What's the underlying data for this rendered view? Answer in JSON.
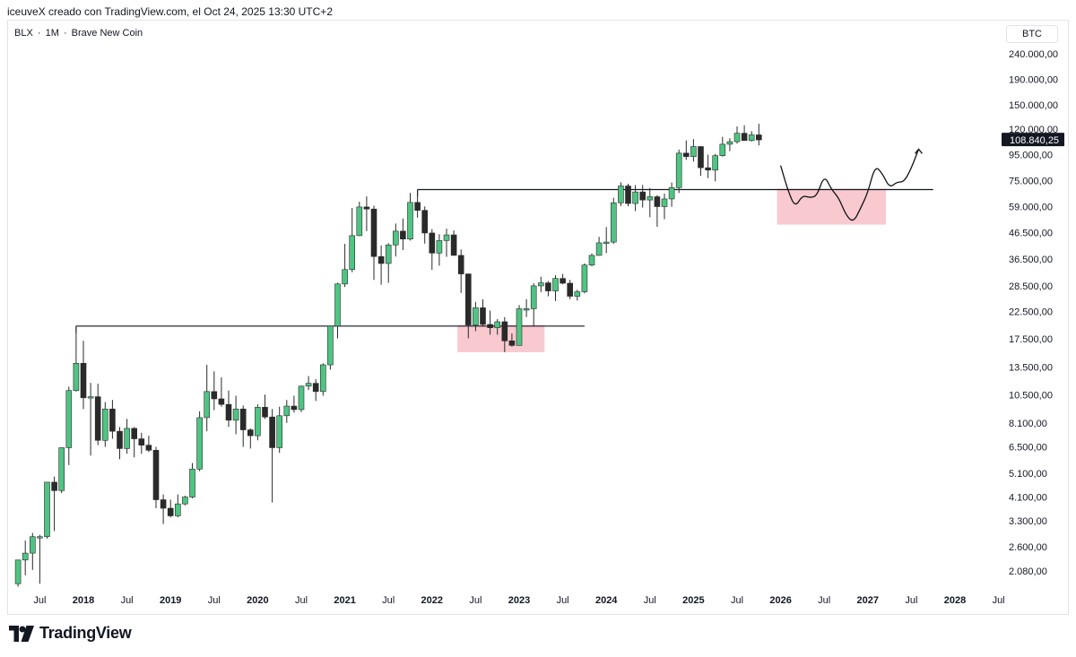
{
  "header": {
    "caption": "iceuveX creado con TradingView.com, el Oct 24, 2025 13:30 UTC+2"
  },
  "symbol": {
    "ticker": "BLX",
    "interval": "1M",
    "source": "Brave New Coin",
    "separator": "·"
  },
  "currency": "BTC",
  "brand": {
    "name": "TradingView"
  },
  "colors": {
    "up": "#4fc483",
    "down": "#2a2a2a",
    "zone": "#f8c9cf",
    "line": "#131722",
    "axis_text": "#131722",
    "last_price_bg": "#131722"
  },
  "chart_data": {
    "type": "candlestick",
    "scale": "log",
    "y_ticks": [
      {
        "value": 240000,
        "label": "240.000,00"
      },
      {
        "value": 190000,
        "label": "190.000,00"
      },
      {
        "value": 150000,
        "label": "150.000,00"
      },
      {
        "value": 120000,
        "label": "120.000,00"
      },
      {
        "value": 95000,
        "label": "95.000,00"
      },
      {
        "value": 75000,
        "label": "75.000,00"
      },
      {
        "value": 59000,
        "label": "59.000,00"
      },
      {
        "value": 46500,
        "label": "46.500,00"
      },
      {
        "value": 36500,
        "label": "36.500,00"
      },
      {
        "value": 28500,
        "label": "28.500,00"
      },
      {
        "value": 22500,
        "label": "22.500,00"
      },
      {
        "value": 17500,
        "label": "17.500,00"
      },
      {
        "value": 13500,
        "label": "13.500,00"
      },
      {
        "value": 10500,
        "label": "10.500,00"
      },
      {
        "value": 8100,
        "label": "8.100,00"
      },
      {
        "value": 6500,
        "label": "6.500,00"
      },
      {
        "value": 5100,
        "label": "5.100,00"
      },
      {
        "value": 4100,
        "label": "4.100,00"
      },
      {
        "value": 3300,
        "label": "3.300,00"
      },
      {
        "value": 2600,
        "label": "2.600,00"
      },
      {
        "value": 2080,
        "label": "2.080,00"
      }
    ],
    "x_ticks": [
      {
        "date": "2017-07",
        "label": "Jul",
        "bold": false
      },
      {
        "date": "2018-01",
        "label": "2018",
        "bold": true
      },
      {
        "date": "2018-07",
        "label": "Jul",
        "bold": false
      },
      {
        "date": "2019-01",
        "label": "2019",
        "bold": true
      },
      {
        "date": "2019-07",
        "label": "Jul",
        "bold": false
      },
      {
        "date": "2020-01",
        "label": "2020",
        "bold": true
      },
      {
        "date": "2020-07",
        "label": "Jul",
        "bold": false
      },
      {
        "date": "2021-01",
        "label": "2021",
        "bold": true
      },
      {
        "date": "2021-07",
        "label": "Jul",
        "bold": false
      },
      {
        "date": "2022-01",
        "label": "2022",
        "bold": true
      },
      {
        "date": "2022-07",
        "label": "Jul",
        "bold": false
      },
      {
        "date": "2023-01",
        "label": "2023",
        "bold": true
      },
      {
        "date": "2023-07",
        "label": "Jul",
        "bold": false
      },
      {
        "date": "2024-01",
        "label": "2024",
        "bold": true
      },
      {
        "date": "2024-07",
        "label": "Jul",
        "bold": false
      },
      {
        "date": "2025-01",
        "label": "2025",
        "bold": true
      },
      {
        "date": "2025-07",
        "label": "Jul",
        "bold": false
      },
      {
        "date": "2026-01",
        "label": "2026",
        "bold": true
      },
      {
        "date": "2026-07",
        "label": "Jul",
        "bold": false
      },
      {
        "date": "2027-01",
        "label": "2027",
        "bold": true
      },
      {
        "date": "2027-07",
        "label": "Jul",
        "bold": false
      },
      {
        "date": "2028-01",
        "label": "2028",
        "bold": true
      },
      {
        "date": "2028-07",
        "label": "Jul",
        "bold": false
      }
    ],
    "last_price": {
      "value": 108840.25,
      "label": "108.840,25"
    },
    "candles": [
      {
        "date": "2017-04",
        "o": 1850,
        "h": 2300,
        "l": 1800,
        "c": 2300
      },
      {
        "date": "2017-05",
        "o": 2300,
        "h": 2750,
        "l": 2000,
        "c": 2450
      },
      {
        "date": "2017-06",
        "o": 2450,
        "h": 2950,
        "l": 2100,
        "c": 2850
      },
      {
        "date": "2017-07",
        "o": 2850,
        "h": 2900,
        "l": 1850,
        "c": 2850
      },
      {
        "date": "2017-08",
        "o": 2850,
        "h": 4700,
        "l": 2800,
        "c": 4700
      },
      {
        "date": "2017-09",
        "o": 4700,
        "h": 4950,
        "l": 3000,
        "c": 4350
      },
      {
        "date": "2017-10",
        "o": 4350,
        "h": 6450,
        "l": 4250,
        "c": 6450
      },
      {
        "date": "2017-11",
        "o": 6450,
        "h": 11300,
        "l": 5500,
        "c": 10900
      },
      {
        "date": "2017-12",
        "o": 10900,
        "h": 19700,
        "l": 10800,
        "c": 14000
      },
      {
        "date": "2018-01",
        "o": 14000,
        "h": 17200,
        "l": 9200,
        "c": 10200
      },
      {
        "date": "2018-02",
        "o": 10200,
        "h": 11700,
        "l": 6000,
        "c": 10300
      },
      {
        "date": "2018-03",
        "o": 10300,
        "h": 11600,
        "l": 6600,
        "c": 6900
      },
      {
        "date": "2018-04",
        "o": 6900,
        "h": 9800,
        "l": 6500,
        "c": 9200
      },
      {
        "date": "2018-05",
        "o": 9200,
        "h": 10000,
        "l": 7000,
        "c": 7500
      },
      {
        "date": "2018-06",
        "o": 7500,
        "h": 7800,
        "l": 5800,
        "c": 6400
      },
      {
        "date": "2018-07",
        "o": 6400,
        "h": 8400,
        "l": 6100,
        "c": 7700
      },
      {
        "date": "2018-08",
        "o": 7700,
        "h": 7800,
        "l": 5900,
        "c": 7000
      },
      {
        "date": "2018-09",
        "o": 7000,
        "h": 7400,
        "l": 6100,
        "c": 6600
      },
      {
        "date": "2018-10",
        "o": 6600,
        "h": 7200,
        "l": 6200,
        "c": 6300
      },
      {
        "date": "2018-11",
        "o": 6300,
        "h": 6500,
        "l": 3700,
        "c": 4000
      },
      {
        "date": "2018-12",
        "o": 4000,
        "h": 4200,
        "l": 3200,
        "c": 3700
      },
      {
        "date": "2019-01",
        "o": 3700,
        "h": 4000,
        "l": 3400,
        "c": 3450
      },
      {
        "date": "2019-02",
        "o": 3450,
        "h": 4200,
        "l": 3400,
        "c": 3850
      },
      {
        "date": "2019-03",
        "o": 3850,
        "h": 4150,
        "l": 3800,
        "c": 4100
      },
      {
        "date": "2019-04",
        "o": 4100,
        "h": 5600,
        "l": 4050,
        "c": 5300
      },
      {
        "date": "2019-05",
        "o": 5300,
        "h": 9000,
        "l": 5200,
        "c": 8500
      },
      {
        "date": "2019-06",
        "o": 8500,
        "h": 13800,
        "l": 7500,
        "c": 10800
      },
      {
        "date": "2019-07",
        "o": 10800,
        "h": 13000,
        "l": 9100,
        "c": 10100
      },
      {
        "date": "2019-08",
        "o": 10100,
        "h": 12300,
        "l": 9400,
        "c": 9600
      },
      {
        "date": "2019-09",
        "o": 9600,
        "h": 10900,
        "l": 7800,
        "c": 8300
      },
      {
        "date": "2019-10",
        "o": 8300,
        "h": 10400,
        "l": 7300,
        "c": 9200
      },
      {
        "date": "2019-11",
        "o": 9200,
        "h": 9500,
        "l": 6500,
        "c": 7600
      },
      {
        "date": "2019-12",
        "o": 7600,
        "h": 7700,
        "l": 6400,
        "c": 7200
      },
      {
        "date": "2020-01",
        "o": 7200,
        "h": 9600,
        "l": 6900,
        "c": 9350
      },
      {
        "date": "2020-02",
        "o": 9350,
        "h": 10500,
        "l": 8400,
        "c": 8550
      },
      {
        "date": "2020-03",
        "o": 8550,
        "h": 9200,
        "l": 3900,
        "c": 6450
      },
      {
        "date": "2020-04",
        "o": 6450,
        "h": 9400,
        "l": 6150,
        "c": 8650
      },
      {
        "date": "2020-05",
        "o": 8650,
        "h": 10000,
        "l": 8100,
        "c": 9450
      },
      {
        "date": "2020-06",
        "o": 9450,
        "h": 10400,
        "l": 8900,
        "c": 9150
      },
      {
        "date": "2020-07",
        "o": 9150,
        "h": 11400,
        "l": 8950,
        "c": 11350
      },
      {
        "date": "2020-08",
        "o": 11350,
        "h": 12450,
        "l": 10950,
        "c": 11650
      },
      {
        "date": "2020-09",
        "o": 11650,
        "h": 12100,
        "l": 9900,
        "c": 10800
      },
      {
        "date": "2020-10",
        "o": 10800,
        "h": 14000,
        "l": 10400,
        "c": 13800
      },
      {
        "date": "2020-11",
        "o": 13800,
        "h": 19800,
        "l": 13200,
        "c": 19700
      },
      {
        "date": "2020-12",
        "o": 19700,
        "h": 29300,
        "l": 17600,
        "c": 29000
      },
      {
        "date": "2021-01",
        "o": 29000,
        "h": 41900,
        "l": 28200,
        "c": 33100
      },
      {
        "date": "2021-02",
        "o": 33100,
        "h": 58300,
        "l": 32300,
        "c": 45200
      },
      {
        "date": "2021-03",
        "o": 45200,
        "h": 61700,
        "l": 45000,
        "c": 58800
      },
      {
        "date": "2021-04",
        "o": 58800,
        "h": 64800,
        "l": 47100,
        "c": 57700
      },
      {
        "date": "2021-05",
        "o": 57700,
        "h": 59500,
        "l": 30100,
        "c": 37300
      },
      {
        "date": "2021-06",
        "o": 37300,
        "h": 41300,
        "l": 28800,
        "c": 35000
      },
      {
        "date": "2021-07",
        "o": 35000,
        "h": 42200,
        "l": 29300,
        "c": 41500
      },
      {
        "date": "2021-08",
        "o": 41500,
        "h": 50500,
        "l": 37300,
        "c": 47100
      },
      {
        "date": "2021-09",
        "o": 47100,
        "h": 52900,
        "l": 39600,
        "c": 43800
      },
      {
        "date": "2021-10",
        "o": 43800,
        "h": 66900,
        "l": 43200,
        "c": 61300
      },
      {
        "date": "2021-11",
        "o": 61300,
        "h": 69000,
        "l": 53300,
        "c": 57000
      },
      {
        "date": "2021-12",
        "o": 57000,
        "h": 59100,
        "l": 42000,
        "c": 46300
      },
      {
        "date": "2022-01",
        "o": 46300,
        "h": 48000,
        "l": 33000,
        "c": 38500
      },
      {
        "date": "2022-02",
        "o": 38500,
        "h": 45800,
        "l": 34300,
        "c": 43200
      },
      {
        "date": "2022-03",
        "o": 43200,
        "h": 48200,
        "l": 37200,
        "c": 45500
      },
      {
        "date": "2022-04",
        "o": 45500,
        "h": 47400,
        "l": 37600,
        "c": 37700
      },
      {
        "date": "2022-05",
        "o": 37700,
        "h": 39800,
        "l": 26700,
        "c": 31800
      },
      {
        "date": "2022-06",
        "o": 31800,
        "h": 31900,
        "l": 17600,
        "c": 19900
      },
      {
        "date": "2022-07",
        "o": 19900,
        "h": 24600,
        "l": 18800,
        "c": 23300
      },
      {
        "date": "2022-08",
        "o": 23300,
        "h": 25200,
        "l": 19600,
        "c": 20000
      },
      {
        "date": "2022-09",
        "o": 20000,
        "h": 22700,
        "l": 18200,
        "c": 19400
      },
      {
        "date": "2022-10",
        "o": 19400,
        "h": 21000,
        "l": 18200,
        "c": 20500
      },
      {
        "date": "2022-11",
        "o": 20500,
        "h": 21400,
        "l": 15500,
        "c": 17200
      },
      {
        "date": "2022-12",
        "o": 17200,
        "h": 18400,
        "l": 16300,
        "c": 16500
      },
      {
        "date": "2023-01",
        "o": 16500,
        "h": 23900,
        "l": 16500,
        "c": 23100
      },
      {
        "date": "2023-02",
        "o": 23100,
        "h": 25200,
        "l": 21400,
        "c": 23100
      },
      {
        "date": "2023-03",
        "o": 23100,
        "h": 29200,
        "l": 19600,
        "c": 28500
      },
      {
        "date": "2023-04",
        "o": 28500,
        "h": 31000,
        "l": 26900,
        "c": 29300
      },
      {
        "date": "2023-05",
        "o": 29300,
        "h": 29800,
        "l": 25900,
        "c": 27200
      },
      {
        "date": "2023-06",
        "o": 27200,
        "h": 31400,
        "l": 24800,
        "c": 30500
      },
      {
        "date": "2023-07",
        "o": 30500,
        "h": 31800,
        "l": 28900,
        "c": 29200
      },
      {
        "date": "2023-08",
        "o": 29200,
        "h": 30100,
        "l": 25200,
        "c": 25900
      },
      {
        "date": "2023-09",
        "o": 25900,
        "h": 27500,
        "l": 24900,
        "c": 27000
      },
      {
        "date": "2023-10",
        "o": 27000,
        "h": 35000,
        "l": 26600,
        "c": 34500
      },
      {
        "date": "2023-11",
        "o": 34500,
        "h": 38400,
        "l": 34100,
        "c": 37700
      },
      {
        "date": "2023-12",
        "o": 37700,
        "h": 44700,
        "l": 37600,
        "c": 42300
      },
      {
        "date": "2024-01",
        "o": 42300,
        "h": 48900,
        "l": 38500,
        "c": 42600
      },
      {
        "date": "2024-02",
        "o": 42600,
        "h": 64000,
        "l": 41900,
        "c": 61100
      },
      {
        "date": "2024-03",
        "o": 61100,
        "h": 73800,
        "l": 59300,
        "c": 71300
      },
      {
        "date": "2024-04",
        "o": 71300,
        "h": 72800,
        "l": 59200,
        "c": 60700
      },
      {
        "date": "2024-05",
        "o": 60700,
        "h": 71900,
        "l": 56600,
        "c": 67500
      },
      {
        "date": "2024-06",
        "o": 67500,
        "h": 72000,
        "l": 58500,
        "c": 62700
      },
      {
        "date": "2024-07",
        "o": 62700,
        "h": 70000,
        "l": 53500,
        "c": 64600
      },
      {
        "date": "2024-08",
        "o": 64600,
        "h": 65600,
        "l": 49000,
        "c": 59000
      },
      {
        "date": "2024-09",
        "o": 59000,
        "h": 66500,
        "l": 52600,
        "c": 63300
      },
      {
        "date": "2024-10",
        "o": 63300,
        "h": 73600,
        "l": 58900,
        "c": 70200
      },
      {
        "date": "2024-11",
        "o": 70200,
        "h": 99600,
        "l": 66800,
        "c": 96400
      },
      {
        "date": "2024-12",
        "o": 96400,
        "h": 108300,
        "l": 90600,
        "c": 93400
      },
      {
        "date": "2025-01",
        "o": 93400,
        "h": 109600,
        "l": 89200,
        "c": 102400
      },
      {
        "date": "2025-02",
        "o": 102400,
        "h": 102700,
        "l": 78200,
        "c": 84300
      },
      {
        "date": "2025-03",
        "o": 84300,
        "h": 95000,
        "l": 76600,
        "c": 82500
      },
      {
        "date": "2025-04",
        "o": 82500,
        "h": 95700,
        "l": 74400,
        "c": 94200
      },
      {
        "date": "2025-05",
        "o": 94200,
        "h": 111900,
        "l": 93400,
        "c": 104600
      },
      {
        "date": "2025-06",
        "o": 104600,
        "h": 110500,
        "l": 98200,
        "c": 107100
      },
      {
        "date": "2025-07",
        "o": 107100,
        "h": 123200,
        "l": 105200,
        "c": 115700
      },
      {
        "date": "2025-08",
        "o": 115700,
        "h": 124500,
        "l": 108000,
        "c": 108200
      },
      {
        "date": "2025-09",
        "o": 108200,
        "h": 117900,
        "l": 107300,
        "c": 114000
      },
      {
        "date": "2025-10",
        "o": 114000,
        "h": 126200,
        "l": 103500,
        "c": 108840
      }
    ],
    "horizontal_lines": [
      {
        "value": 19700,
        "from": "2017-12",
        "to": "2023-10"
      },
      {
        "value": 69000,
        "from": "2021-11",
        "to": "2027-10"
      }
    ],
    "zones": [
      {
        "from": "2022-05",
        "to": "2023-04",
        "low": 15500,
        "high": 19900
      },
      {
        "from": "2026-01",
        "to": "2027-03",
        "low": 50000,
        "high": 69500
      }
    ],
    "projection": [
      {
        "date": "2026-01",
        "value": 86000
      },
      {
        "date": "2026-02",
        "value": 68500
      },
      {
        "date": "2026-03",
        "value": 58500
      },
      {
        "date": "2026-04",
        "value": 65500
      },
      {
        "date": "2026-05",
        "value": 64000
      },
      {
        "date": "2026-06",
        "value": 65000
      },
      {
        "date": "2026-07",
        "value": 79000
      },
      {
        "date": "2026-08",
        "value": 69000
      },
      {
        "date": "2026-09",
        "value": 64000
      },
      {
        "date": "2026-10",
        "value": 54500
      },
      {
        "date": "2026-11",
        "value": 51000
      },
      {
        "date": "2026-12",
        "value": 58000
      },
      {
        "date": "2027-01",
        "value": 67000
      },
      {
        "date": "2027-02",
        "value": 86000
      },
      {
        "date": "2027-03",
        "value": 80000
      },
      {
        "date": "2027-04",
        "value": 70000
      },
      {
        "date": "2027-05",
        "value": 74000
      },
      {
        "date": "2027-06",
        "value": 74000
      },
      {
        "date": "2027-07",
        "value": 84000
      },
      {
        "date": "2027-08",
        "value": 100000
      }
    ]
  }
}
